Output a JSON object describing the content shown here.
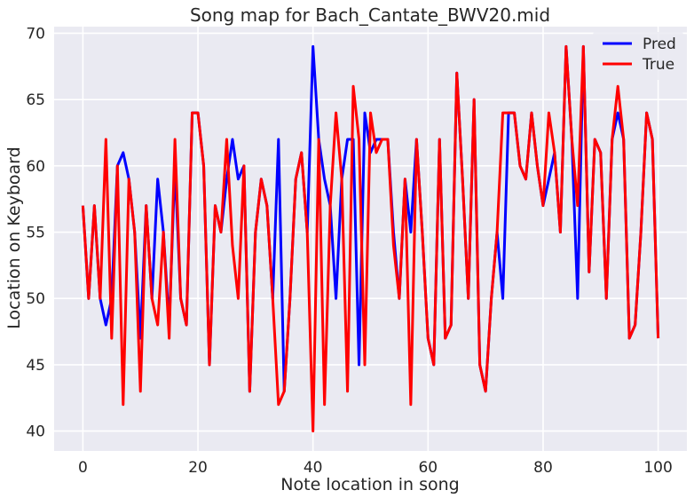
{
  "chart_data": {
    "type": "line",
    "title": "Song map for Bach_Cantate_BWV20.mid",
    "xlabel": "Note location in song",
    "ylabel": "Location on Keyboard",
    "xlim": [
      -5,
      105
    ],
    "ylim": [
      38.5,
      70.5
    ],
    "xticks": [
      0,
      20,
      40,
      60,
      80,
      100
    ],
    "yticks": [
      40,
      45,
      50,
      55,
      60,
      65,
      70
    ],
    "grid": true,
    "legend_position": "top-right",
    "background": "#eaeaf2",
    "x": [
      0,
      1,
      2,
      3,
      4,
      5,
      6,
      7,
      8,
      9,
      10,
      11,
      12,
      13,
      14,
      15,
      16,
      17,
      18,
      19,
      20,
      21,
      22,
      23,
      24,
      25,
      26,
      27,
      28,
      29,
      30,
      31,
      32,
      33,
      34,
      35,
      36,
      37,
      38,
      39,
      40,
      41,
      42,
      43,
      44,
      45,
      46,
      47,
      48,
      49,
      50,
      51,
      52,
      53,
      54,
      55,
      56,
      57,
      58,
      59,
      60,
      61,
      62,
      63,
      64,
      65,
      66,
      67,
      68,
      69,
      70,
      71,
      72,
      73,
      74,
      75,
      76,
      77,
      78,
      79,
      80,
      81,
      82,
      83,
      84,
      85,
      86,
      87,
      88,
      89,
      90,
      91,
      92,
      93,
      94,
      95,
      96,
      97,
      98,
      99,
      100
    ],
    "series": [
      {
        "name": "Pred",
        "color": "#0000ff",
        "values": [
          57,
          50,
          57,
          50,
          48,
          50,
          60,
          61,
          59,
          55,
          47,
          57,
          50,
          59,
          55,
          48,
          60,
          50,
          48,
          64,
          64,
          60,
          45,
          57,
          55,
          59,
          62,
          59,
          60,
          43,
          55,
          59,
          57,
          50,
          62,
          43,
          50,
          59,
          61,
          55,
          69,
          62,
          59,
          57,
          50,
          59,
          62,
          62,
          45,
          64,
          61,
          62,
          62,
          62,
          55,
          50,
          59,
          55,
          62,
          55,
          47,
          45,
          62,
          47,
          48,
          67,
          59,
          50,
          65,
          45,
          43,
          50,
          55,
          50,
          64,
          64,
          60,
          59,
          64,
          60,
          57,
          59,
          61,
          55,
          69,
          62,
          50,
          69,
          52,
          62,
          61,
          50,
          62,
          64,
          62,
          47,
          48,
          55,
          64,
          62,
          47
        ]
      },
      {
        "name": "True",
        "color": "#ff0000",
        "values": [
          57,
          50,
          57,
          50,
          62,
          47,
          60,
          42,
          59,
          55,
          43,
          57,
          50,
          48,
          55,
          47,
          62,
          50,
          48,
          64,
          64,
          60,
          45,
          57,
          55,
          62,
          54,
          50,
          60,
          43,
          55,
          59,
          57,
          50,
          42,
          43,
          50,
          59,
          61,
          55,
          40,
          62,
          42,
          57,
          64,
          59,
          43,
          66,
          62,
          45,
          64,
          61,
          62,
          62,
          54,
          50,
          59,
          42,
          62,
          55,
          47,
          45,
          62,
          47,
          48,
          67,
          59,
          50,
          65,
          45,
          43,
          50,
          55,
          64,
          64,
          64,
          60,
          59,
          64,
          60,
          57,
          64,
          61,
          55,
          69,
          62,
          57,
          69,
          52,
          62,
          61,
          50,
          62,
          66,
          62,
          47,
          48,
          55,
          64,
          62,
          47
        ]
      }
    ]
  }
}
